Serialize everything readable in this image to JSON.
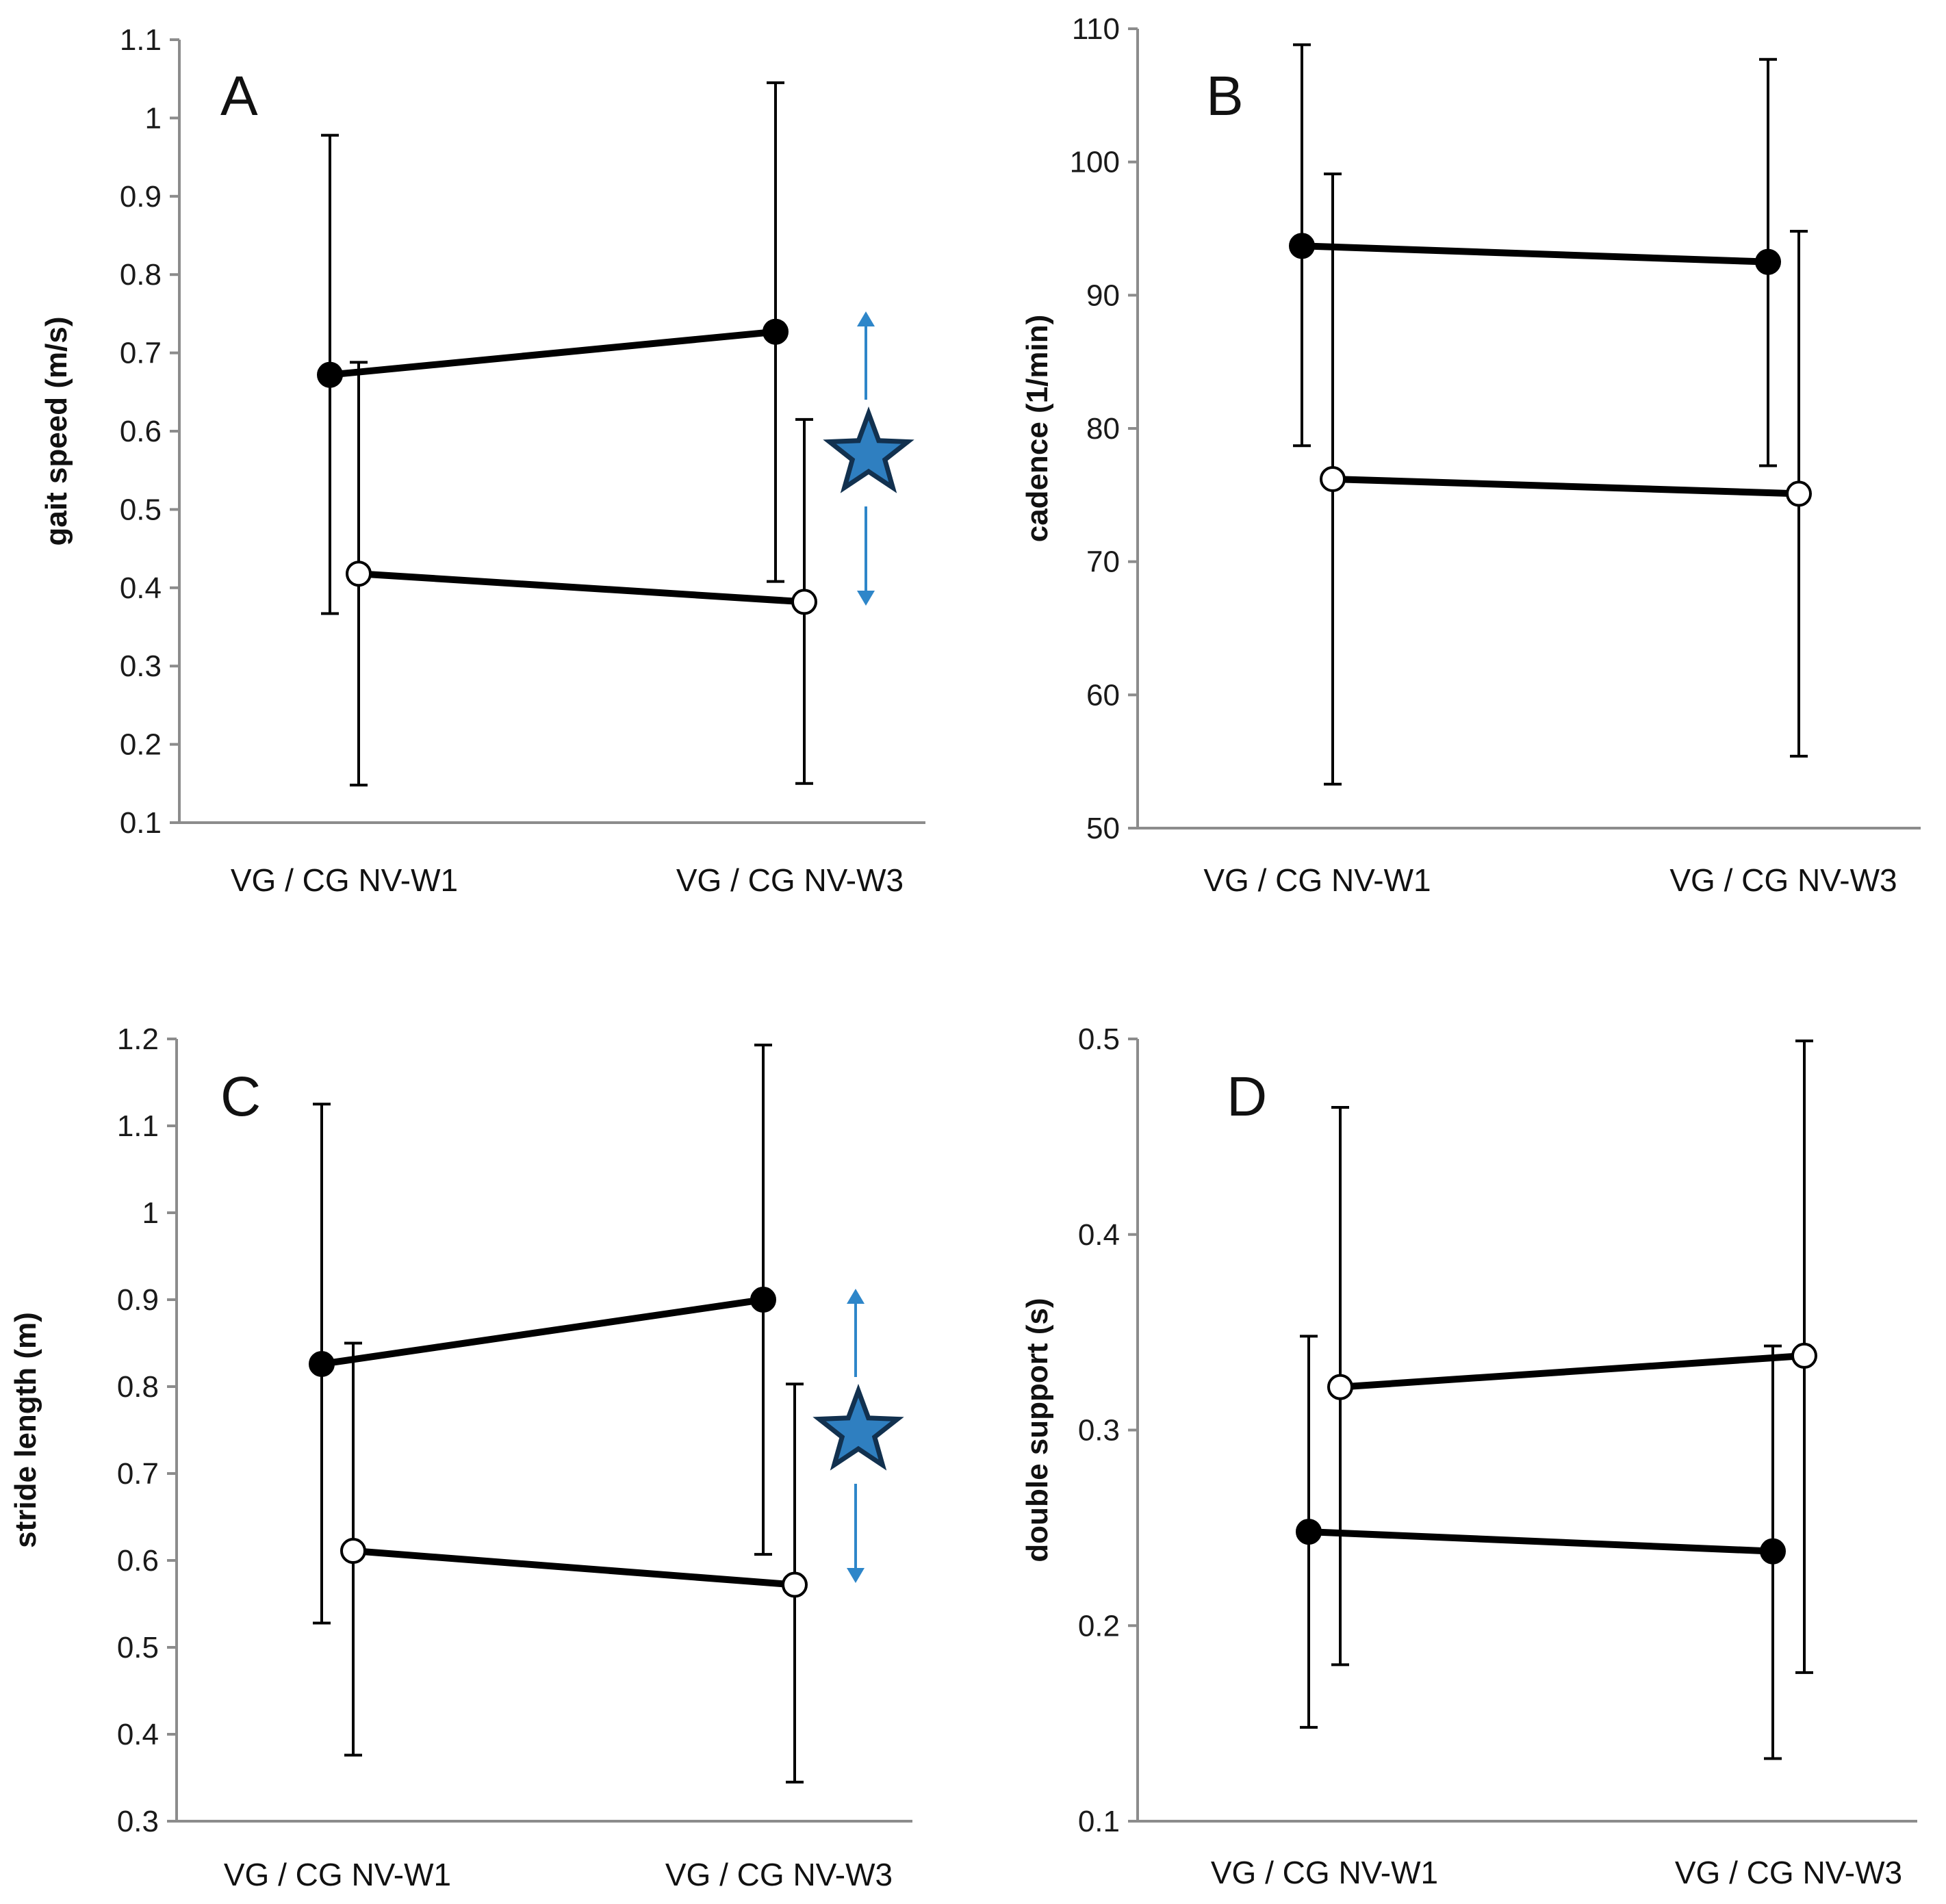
{
  "figure": {
    "colors": {
      "line": "#000000",
      "axis": "#8c8c8c",
      "arrow": "#2e86c9",
      "star_fill": "#2f7fc0",
      "star_stroke": "#12314f",
      "open_marker_fill": "#ffffff",
      "filled_marker_fill": "#000000"
    }
  },
  "chart_data": [
    {
      "type": "line",
      "panel": "A",
      "title": "",
      "ylabel": "gait speed (m/s)",
      "xlabel": "",
      "categories": [
        "VG / CG NV-W1",
        "VG / CG NV-W3"
      ],
      "ylim": [
        0.1,
        1.1
      ],
      "yticks": [
        "0.1",
        "0.2",
        "0.3",
        "0.4",
        "0.5",
        "0.6",
        "0.7",
        "0.8",
        "0.9",
        "1",
        "1.1"
      ],
      "significance_marker": true,
      "series": [
        {
          "name": "VG",
          "marker": "filled",
          "values": [
            0.672,
            0.727
          ],
          "err_high": [
            0.978,
            1.045
          ],
          "err_low": [
            0.367,
            0.408
          ]
        },
        {
          "name": "CG",
          "marker": "open",
          "values": [
            0.418,
            0.382
          ],
          "err_high": [
            0.688,
            0.615
          ],
          "err_low": [
            0.148,
            0.15
          ]
        }
      ]
    },
    {
      "type": "line",
      "panel": "B",
      "title": "",
      "ylabel": "cadence (1/min)",
      "xlabel": "",
      "categories": [
        "VG / CG NV-W1",
        "VG / CG NV-W3"
      ],
      "ylim": [
        50,
        110
      ],
      "yticks": [
        "50",
        "60",
        "70",
        "80",
        "90",
        "100",
        "110"
      ],
      "significance_marker": false,
      "series": [
        {
          "name": "VG",
          "marker": "filled",
          "values": [
            93.7,
            92.5
          ],
          "err_high": [
            108.8,
            107.7
          ],
          "err_low": [
            78.7,
            77.2
          ]
        },
        {
          "name": "CG",
          "marker": "open",
          "values": [
            76.2,
            75.1
          ],
          "err_high": [
            99.1,
            94.8
          ],
          "err_low": [
            53.3,
            55.4
          ]
        }
      ]
    },
    {
      "type": "line",
      "panel": "C",
      "title": "",
      "ylabel": "stride length (m)",
      "xlabel": "",
      "categories": [
        "VG / CG NV-W1",
        "VG / CG NV-W3"
      ],
      "ylim": [
        0.3,
        1.2
      ],
      "yticks": [
        "0.3",
        "0.4",
        "0.5",
        "0.6",
        "0.7",
        "0.8",
        "0.9",
        "1",
        "1.1",
        "1.2"
      ],
      "significance_marker": true,
      "series": [
        {
          "name": "VG",
          "marker": "filled",
          "values": [
            0.826,
            0.9
          ],
          "err_high": [
            1.125,
            1.193
          ],
          "err_low": [
            0.528,
            0.607
          ]
        },
        {
          "name": "CG",
          "marker": "open",
          "values": [
            0.611,
            0.572
          ],
          "err_high": [
            0.85,
            0.803
          ],
          "err_low": [
            0.376,
            0.345
          ]
        }
      ]
    },
    {
      "type": "line",
      "panel": "D",
      "title": "",
      "ylabel": "double support (s)",
      "xlabel": "",
      "categories": [
        "VG / CG NV-W1",
        "VG / CG NV-W3"
      ],
      "ylim": [
        0.1,
        0.5
      ],
      "yticks": [
        "0.1",
        "0.2",
        "0.3",
        "0.4",
        "0.5"
      ],
      "significance_marker": false,
      "series": [
        {
          "name": "VG",
          "marker": "filled",
          "values": [
            0.248,
            0.238
          ],
          "err_high": [
            0.348,
            0.343
          ],
          "err_low": [
            0.148,
            0.132
          ]
        },
        {
          "name": "CG",
          "marker": "open",
          "values": [
            0.322,
            0.338
          ],
          "err_high": [
            0.465,
            0.499
          ],
          "err_low": [
            0.18,
            0.176
          ]
        }
      ]
    }
  ]
}
